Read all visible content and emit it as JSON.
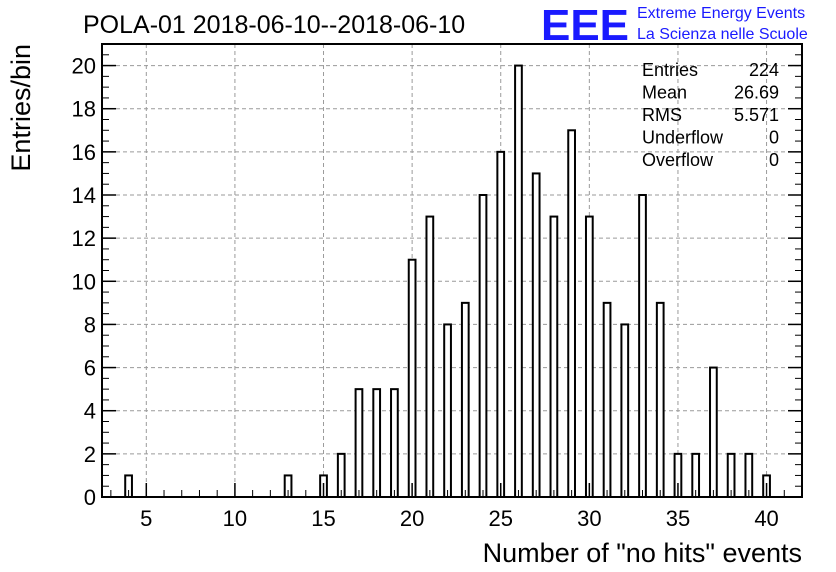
{
  "chart_data": {
    "type": "bar",
    "title": "POLA-01 2018-06-10--2018-06-10",
    "xlabel": "Number of \"no hits\" events",
    "ylabel": "Entries/bin",
    "xlim": [
      2.5,
      42
    ],
    "ylim": [
      0,
      21
    ],
    "grid": true,
    "x_ticks": [
      "5",
      "10",
      "15",
      "20",
      "25",
      "30",
      "35",
      "40"
    ],
    "y_ticks": [
      "0",
      "2",
      "4",
      "6",
      "8",
      "10",
      "12",
      "14",
      "16",
      "18",
      "20"
    ],
    "bins": [
      {
        "x": 4,
        "y": 1
      },
      {
        "x": 13,
        "y": 1
      },
      {
        "x": 15,
        "y": 1
      },
      {
        "x": 16,
        "y": 2
      },
      {
        "x": 17,
        "y": 5
      },
      {
        "x": 18,
        "y": 5
      },
      {
        "x": 19,
        "y": 5
      },
      {
        "x": 20,
        "y": 11
      },
      {
        "x": 21,
        "y": 13
      },
      {
        "x": 22,
        "y": 8
      },
      {
        "x": 23,
        "y": 9
      },
      {
        "x": 24,
        "y": 14
      },
      {
        "x": 25,
        "y": 16
      },
      {
        "x": 26,
        "y": 20
      },
      {
        "x": 27,
        "y": 15
      },
      {
        "x": 28,
        "y": 13
      },
      {
        "x": 29,
        "y": 17
      },
      {
        "x": 30,
        "y": 13
      },
      {
        "x": 31,
        "y": 9
      },
      {
        "x": 32,
        "y": 8
      },
      {
        "x": 33,
        "y": 14
      },
      {
        "x": 34,
        "y": 9
      },
      {
        "x": 35,
        "y": 2
      },
      {
        "x": 36,
        "y": 2
      },
      {
        "x": 37,
        "y": 6
      },
      {
        "x": 38,
        "y": 2
      },
      {
        "x": 39,
        "y": 2
      },
      {
        "x": 40,
        "y": 1
      }
    ],
    "stats": [
      {
        "label": "Entries",
        "value": "224"
      },
      {
        "label": "Mean",
        "value": "26.69"
      },
      {
        "label": "RMS",
        "value": "5.571"
      },
      {
        "label": "Underflow",
        "value": "0"
      },
      {
        "label": "Overflow",
        "value": "0"
      }
    ]
  },
  "logo": {
    "big": "EEE",
    "line1": "Extreme Energy Events",
    "line2": "La Scienza nelle Scuole"
  },
  "colors": {
    "logo": "#1a1aff",
    "bar_stroke": "#000000",
    "grid": "#9a9a9a"
  }
}
